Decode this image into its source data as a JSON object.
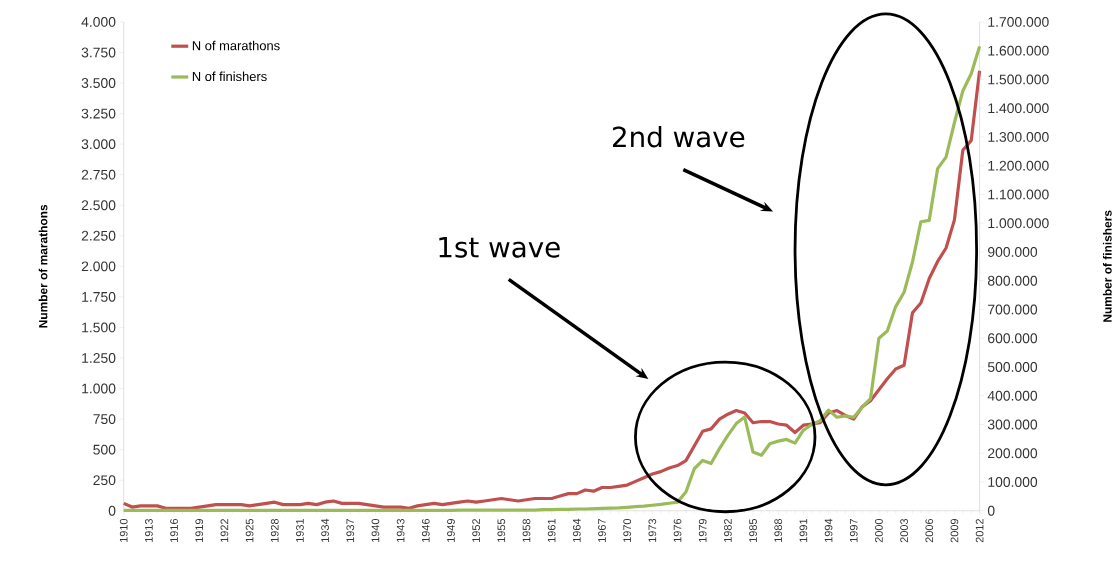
{
  "chart_data": {
    "type": "line",
    "ylabel": "Number of marathons",
    "y2label": "Number of finishers",
    "x": [
      1910,
      1911,
      1912,
      1913,
      1914,
      1915,
      1916,
      1917,
      1918,
      1919,
      1920,
      1921,
      1922,
      1923,
      1924,
      1925,
      1926,
      1927,
      1928,
      1929,
      1930,
      1931,
      1932,
      1933,
      1934,
      1935,
      1936,
      1937,
      1938,
      1939,
      1940,
      1941,
      1942,
      1943,
      1944,
      1945,
      1946,
      1947,
      1948,
      1949,
      1950,
      1951,
      1952,
      1953,
      1954,
      1955,
      1956,
      1957,
      1958,
      1959,
      1960,
      1961,
      1962,
      1963,
      1964,
      1965,
      1966,
      1967,
      1968,
      1969,
      1970,
      1971,
      1972,
      1973,
      1974,
      1975,
      1976,
      1977,
      1978,
      1979,
      1980,
      1981,
      1982,
      1983,
      1984,
      1985,
      1986,
      1987,
      1988,
      1989,
      1990,
      1991,
      1992,
      1993,
      1994,
      1995,
      1996,
      1997,
      1998,
      1999,
      2000,
      2001,
      2002,
      2003,
      2004,
      2005,
      2006,
      2007,
      2008,
      2009,
      2010,
      2011,
      2012
    ],
    "series": [
      {
        "name": "N of marathons",
        "color": "#c0504d",
        "values": [
          60,
          30,
          40,
          40,
          40,
          20,
          20,
          20,
          20,
          30,
          40,
          50,
          50,
          50,
          50,
          40,
          50,
          60,
          70,
          50,
          50,
          50,
          60,
          50,
          70,
          80,
          60,
          60,
          60,
          50,
          40,
          30,
          30,
          30,
          20,
          40,
          50,
          60,
          50,
          60,
          70,
          80,
          70,
          80,
          90,
          100,
          90,
          80,
          90,
          100,
          100,
          100,
          120,
          140,
          140,
          170,
          160,
          190,
          190,
          200,
          210,
          240,
          270,
          300,
          320,
          350,
          370,
          410,
          530,
          650,
          670,
          750,
          790,
          820,
          800,
          720,
          730,
          730,
          710,
          700,
          640,
          700,
          710,
          720,
          800,
          820,
          780,
          750,
          850,
          900,
          990,
          1080,
          1160,
          1190,
          1620,
          1700,
          1900,
          2040,
          2150,
          2380,
          2950,
          3030,
          3600
        ]
      },
      {
        "name": "N of finishers",
        "color": "#9bbb59",
        "axis": "y2",
        "values": [
          1000,
          1000,
          1000,
          1000,
          1000,
          1000,
          1000,
          1000,
          1000,
          1000,
          1000,
          1000,
          1000,
          1000,
          1000,
          1000,
          1000,
          1000,
          1000,
          1000,
          1000,
          1000,
          1000,
          1000,
          1000,
          1000,
          1000,
          1000,
          1000,
          1000,
          1000,
          1000,
          1000,
          1000,
          1000,
          1000,
          1000,
          1000,
          1000,
          1000,
          2000,
          2000,
          2000,
          2000,
          2000,
          2000,
          2000,
          2000,
          2000,
          2000,
          4000,
          4000,
          5000,
          5000,
          6000,
          6000,
          7000,
          8000,
          9000,
          10000,
          12000,
          14000,
          16000,
          19000,
          22000,
          26000,
          30000,
          65000,
          146000,
          175000,
          164000,
          216000,
          262000,
          303000,
          326000,
          204000,
          193000,
          233000,
          242000,
          248000,
          235000,
          280000,
          300000,
          313000,
          350000,
          325000,
          330000,
          325000,
          360000,
          390000,
          600000,
          625000,
          710000,
          760000,
          865000,
          1005000,
          1010000,
          1190000,
          1230000,
          1350000,
          1460000,
          1520000,
          1615000
        ]
      }
    ],
    "xlim": [
      1910,
      2012
    ],
    "xticks": [
      1910,
      1913,
      1916,
      1919,
      1922,
      1925,
      1928,
      1931,
      1934,
      1937,
      1940,
      1943,
      1946,
      1949,
      1952,
      1955,
      1958,
      1961,
      1964,
      1967,
      1970,
      1973,
      1976,
      1979,
      1982,
      1985,
      1988,
      1991,
      1994,
      1997,
      2000,
      2003,
      2006,
      2009,
      2012
    ],
    "ylim": [
      0,
      4000
    ],
    "yticks": [
      0,
      {
        "value": 250,
        "label": "250"
      },
      {
        "value": 500,
        "label": "500"
      },
      {
        "value": 750,
        "label": "750"
      },
      {
        "value": 1000,
        "label": "1.000"
      },
      {
        "value": 1250,
        "label": "1.250"
      },
      {
        "value": 1500,
        "label": "1.500"
      },
      {
        "value": 1750,
        "label": "1.750"
      },
      {
        "value": 2000,
        "label": "2.000"
      },
      {
        "value": 2250,
        "label": "2.250"
      },
      {
        "value": 2500,
        "label": "2.500"
      },
      {
        "value": 2750,
        "label": "2.750"
      },
      {
        "value": 3000,
        "label": "3.000"
      },
      {
        "value": 3250,
        "label": "3.250"
      },
      {
        "value": 3500,
        "label": "3.500"
      },
      {
        "value": 3750,
        "label": "3.750"
      },
      {
        "value": 4000,
        "label": "4.000"
      }
    ],
    "y2lim": [
      0,
      1700000
    ],
    "y2ticks": [
      0,
      {
        "value": 100000,
        "label": "100.000"
      },
      {
        "value": 200000,
        "label": "200.000"
      },
      {
        "value": 300000,
        "label": "300.000"
      },
      {
        "value": 400000,
        "label": "400.000"
      },
      {
        "value": 500000,
        "label": "500.000"
      },
      {
        "value": 600000,
        "label": "600.000"
      },
      {
        "value": 700000,
        "label": "700.000"
      },
      {
        "value": 800000,
        "label": "800.000"
      },
      {
        "value": 900000,
        "label": "900.000"
      },
      {
        "value": 1000000,
        "label": "1.000.000"
      },
      {
        "value": 1100000,
        "label": "1.100.000"
      },
      {
        "value": 1200000,
        "label": "1.200.000"
      },
      {
        "value": 1300000,
        "label": "1.300.000"
      },
      {
        "value": 1400000,
        "label": "1.400.000"
      },
      {
        "value": 1500000,
        "label": "1.500.000"
      },
      {
        "value": 1600000,
        "label": "1.600.000"
      },
      {
        "value": 1700000,
        "label": "1.700.000"
      }
    ],
    "annotations": [
      "1st wave",
      "2nd wave"
    ],
    "legend": "top left",
    "grid": false,
    "marker": "none",
    "line_style": "solid"
  }
}
